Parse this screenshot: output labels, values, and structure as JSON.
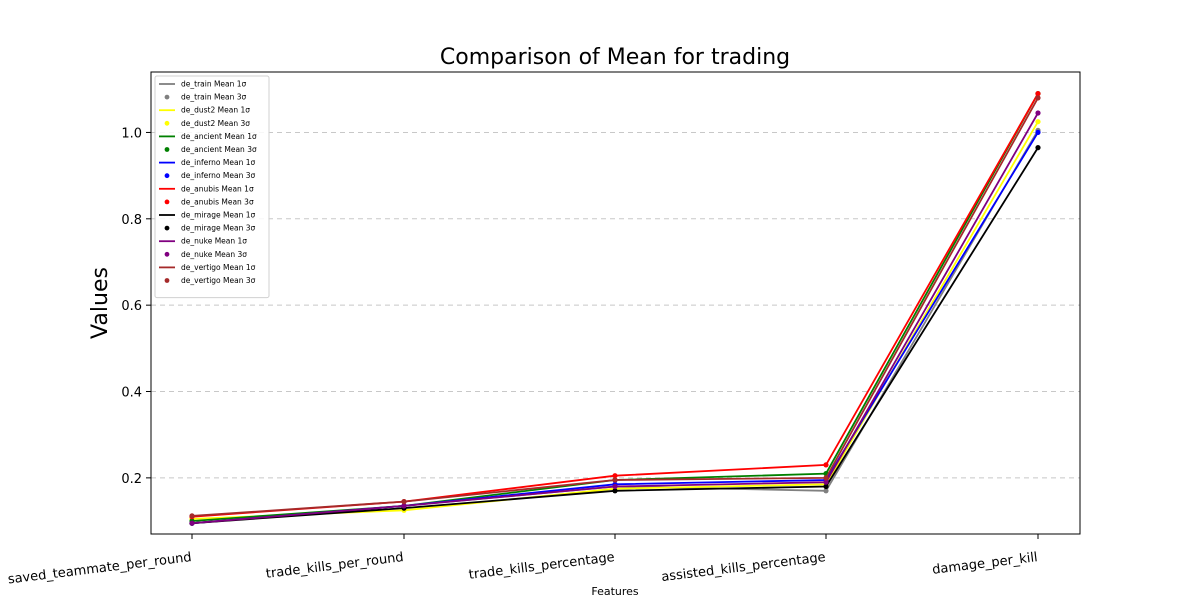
{
  "chart_data": {
    "type": "line",
    "title": "Comparison of Mean for trading",
    "xlabel": "Features",
    "ylabel": "Values",
    "categories": [
      "saved_teammate_per_round",
      "trade_kills_per_round",
      "trade_kills_percentage",
      "assisted_kills_percentage",
      "damage_per_kill"
    ],
    "ylim": [
      0.07,
      1.14
    ],
    "yticks": [
      "0.2",
      "0.4",
      "0.6",
      "0.8",
      "1.0"
    ],
    "ytick_values": [
      0.2,
      0.4,
      0.6,
      0.8,
      1.0
    ],
    "grid": "y-dashed",
    "legend_position": "top-left",
    "series": [
      {
        "name": "de_train",
        "color": "#808080",
        "line_label": "de_train Mean 1σ",
        "point_label": "de_train Mean 3σ",
        "values": [
          0.095,
          0.135,
          0.18,
          0.17,
          1.005
        ]
      },
      {
        "name": "de_dust2",
        "color": "#ffff00",
        "line_label": "de_dust2 Mean 1σ",
        "point_label": "de_dust2 Mean 3σ",
        "values": [
          0.105,
          0.125,
          0.175,
          0.185,
          1.025
        ]
      },
      {
        "name": "de_ancient",
        "color": "#008000",
        "line_label": "de_ancient Mean 1σ",
        "point_label": "de_ancient Mean 3σ",
        "values": [
          0.1,
          0.135,
          0.195,
          0.21,
          1.09
        ]
      },
      {
        "name": "de_inferno",
        "color": "#0000ff",
        "line_label": "de_inferno Mean 1σ",
        "point_label": "de_inferno Mean 3σ",
        "values": [
          0.095,
          0.135,
          0.185,
          0.195,
          1.0
        ]
      },
      {
        "name": "de_anubis",
        "color": "#ff0000",
        "line_label": "de_anubis Mean 1σ",
        "point_label": "de_anubis Mean 3σ",
        "values": [
          0.11,
          0.145,
          0.205,
          0.23,
          1.09
        ]
      },
      {
        "name": "de_mirage",
        "color": "#000000",
        "line_label": "de_mirage Mean 1σ",
        "point_label": "de_mirage Mean 3σ",
        "values": [
          0.095,
          0.13,
          0.17,
          0.18,
          0.965
        ]
      },
      {
        "name": "de_nuke",
        "color": "#800080",
        "line_label": "de_nuke Mean 1σ",
        "point_label": "de_nuke Mean 3σ",
        "values": [
          0.095,
          0.135,
          0.18,
          0.19,
          1.045
        ]
      },
      {
        "name": "de_vertigo",
        "color": "#a52a2a",
        "line_label": "de_vertigo Mean 1σ",
        "point_label": "de_vertigo Mean 3σ",
        "values": [
          0.112,
          0.145,
          0.195,
          0.2,
          1.08
        ]
      }
    ]
  }
}
